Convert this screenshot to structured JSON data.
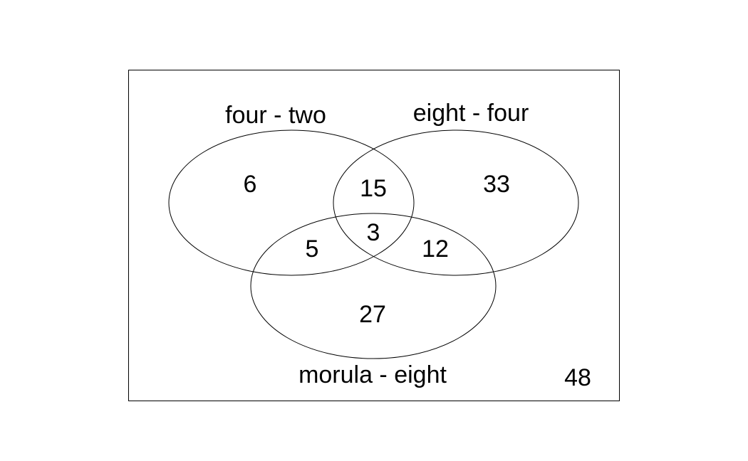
{
  "sets": [
    {
      "id": "A",
      "label": "four - two"
    },
    {
      "id": "B",
      "label": "eight - four"
    },
    {
      "id": "C",
      "label": "morula - eight"
    }
  ],
  "regions": {
    "A_only": "6",
    "B_only": "33",
    "C_only": "27",
    "AB_only": "15",
    "AC_only": "5",
    "BC_only": "12",
    "ABC": "3",
    "outside": "48"
  },
  "colors": {
    "stroke": "#000000",
    "background": "#ffffff"
  }
}
